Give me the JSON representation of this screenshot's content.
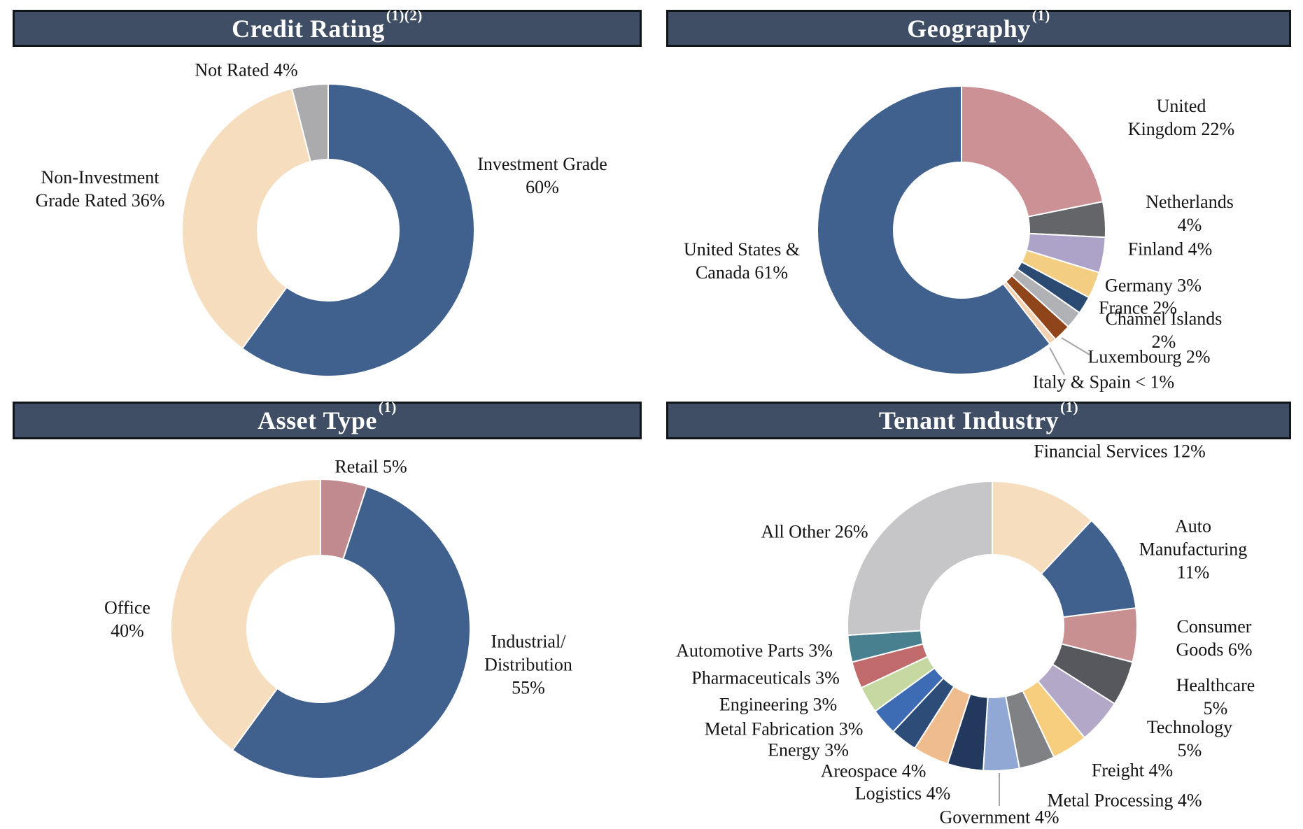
{
  "styles": {
    "header_background": "#3F4E64",
    "header_text_color": "#FFFFFF",
    "leader_line_color": "#A6A6A6",
    "slice_border_color": "#FFFFFF"
  },
  "chart_data": [
    {
      "type": "pie",
      "variant": "donut",
      "title": "Credit Rating",
      "title_sup": "(1)(2)",
      "unit": "%",
      "categories": [
        "Investment Grade",
        "Non-Investment Grade Rated",
        "Not Rated"
      ],
      "values": [
        60,
        36,
        4
      ],
      "colors": [
        "#40608E",
        "#F6DDBE",
        "#ABABAE"
      ],
      "display_labels": [
        "Investment Grade\n60%",
        "Non-Investment\nGrade Rated 36%",
        "Not Rated 4%"
      ]
    },
    {
      "type": "pie",
      "variant": "donut",
      "title": "Geography",
      "title_sup": "(1)",
      "unit": "%",
      "categories": [
        "United Kingdom",
        "Netherlands",
        "Finland",
        "Germany",
        "France",
        "Channel Islands",
        "Luxembourg",
        "Italy & Spain",
        "United States & Canada"
      ],
      "values": [
        22,
        4,
        4,
        3,
        2,
        2,
        2,
        0.8,
        61
      ],
      "value_display": [
        "22%",
        "4%",
        "4%",
        "3%",
        "2%",
        "2%",
        "2%",
        "< 1%",
        "61%"
      ],
      "colors": [
        "#CB9195",
        "#646569",
        "#ADA3C9",
        "#F3CE82",
        "#2B4A72",
        "#AFB1B4",
        "#8F4519",
        "#F4D1B0",
        "#40608E"
      ],
      "display_labels": [
        "United Kingdom 22%",
        "Netherlands 4%",
        "Finland 4%",
        "Germany 3%",
        "France 2%",
        "Channel Islands 2%",
        "Luxembourg 2%",
        "Italy & Spain < 1%",
        "United States &\nCanada 61%"
      ]
    },
    {
      "type": "pie",
      "variant": "donut",
      "title": "Asset Type",
      "title_sup": "(1)",
      "unit": "%",
      "categories": [
        "Retail",
        "Industrial/Distribution",
        "Office"
      ],
      "values": [
        5,
        55,
        40
      ],
      "colors": [
        "#C08A8E",
        "#40608E",
        "#F6DDBE"
      ],
      "display_labels": [
        "Retail 5%",
        "Industrial/\nDistribution\n55%",
        "Office\n40%"
      ]
    },
    {
      "type": "pie",
      "variant": "donut",
      "title": "Tenant Industry",
      "title_sup": "(1)",
      "unit": "%",
      "categories": [
        "Financial Services",
        "Auto Manufacturing",
        "Consumer Goods",
        "Healthcare",
        "Technology",
        "Freight",
        "Metal Processing",
        "Government",
        "Logistics",
        "Areospace",
        "Energy",
        "Metal Fabrication",
        "Engineering",
        "Pharmaceuticals",
        "Automotive Parts",
        "All Other"
      ],
      "values": [
        12,
        11,
        6,
        5,
        5,
        4,
        4,
        4,
        4,
        4,
        3,
        3,
        3,
        3,
        3,
        26
      ],
      "colors": [
        "#F6DDBE",
        "#40608E",
        "#C99091",
        "#57585D",
        "#B4A8C9",
        "#F6CE7D",
        "#808185",
        "#92A8D4",
        "#22385C",
        "#EFBD8D",
        "#2D4C77",
        "#3D6CB5",
        "#C6D8A2",
        "#C06A6C",
        "#49808F",
        "#C6C6C8"
      ],
      "display_labels": [
        "Financial Services 12%",
        "Auto Manufacturing\n11%",
        "Consumer\nGoods 6%",
        "Healthcare 5%",
        "Technology 5%",
        "Freight 4%",
        "Metal Processing 4%",
        "Government 4%",
        "Logistics 4%",
        "Areospace 4%",
        "Energy 3%",
        "Metal Fabrication 3%",
        "Engineering 3%",
        "Pharmaceuticals 3%",
        "Automotive Parts 3%",
        "All Other 26%"
      ]
    }
  ]
}
